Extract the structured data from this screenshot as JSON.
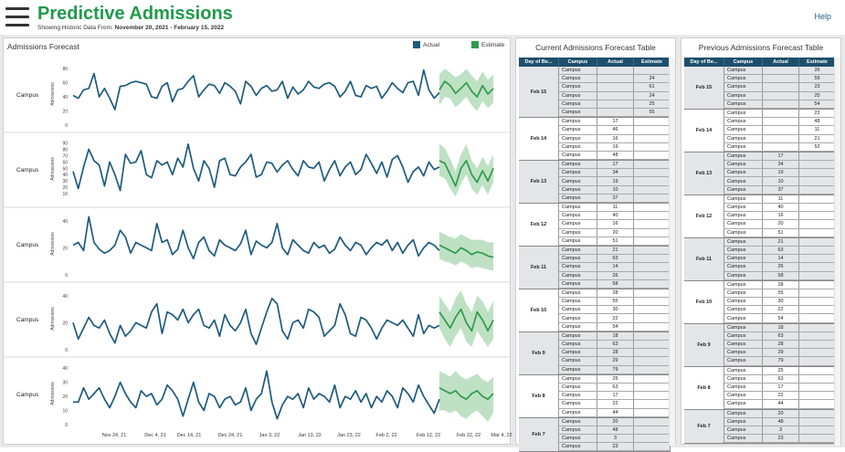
{
  "header": {
    "title": "Predictive Admissions",
    "subtitle_prefix": "Showing Historic Data From:",
    "subtitle_range": "November 20, 2021 - February 15, 2022",
    "help": "Help"
  },
  "forecast": {
    "title": "Admissions Forecast",
    "legend_actual": "Actual",
    "legend_estimate": "Estimate",
    "row_label": "Campus",
    "ylabel": "Admissions",
    "colors": {
      "actual": "#1d5b7d",
      "estimate": "#2f9a4a",
      "band": "#a8d7b0"
    }
  },
  "chart_data": {
    "type": "line",
    "x_dates": [
      "Nov 24, 21",
      "Dec 4, 21",
      "Dec 14, 21",
      "Dec 24, 21",
      "Jan 3, 22",
      "Jan 13, 22",
      "Jan 23, 22",
      "Feb 2, 22",
      "Feb 12, 22",
      "Feb 22, 22",
      "Mar 4, 22"
    ],
    "panels": [
      {
        "label": "Campus",
        "ylabel": "Admissions",
        "yticks": [
          0,
          20,
          40,
          60,
          80
        ],
        "ylim": [
          0,
          88
        ],
        "actual": [
          42,
          38,
          50,
          52,
          73,
          40,
          52,
          38,
          22,
          55,
          56,
          60,
          62,
          60,
          58,
          40,
          38,
          55,
          60,
          33,
          50,
          52,
          62,
          70,
          40,
          50,
          58,
          56,
          45,
          60,
          55,
          48,
          30,
          62,
          55,
          42,
          52,
          56,
          48,
          50,
          62,
          38,
          54,
          44,
          50,
          62,
          54,
          52,
          58,
          60,
          55,
          40,
          48,
          62,
          42,
          40,
          56,
          52,
          55,
          38,
          48,
          60,
          52,
          46,
          60,
          62,
          42,
          78,
          50,
          38,
          46
        ],
        "estimate": [
          50,
          62,
          56,
          45,
          52,
          60,
          48,
          40,
          56,
          44,
          52
        ],
        "est_upper": [
          72,
          80,
          74,
          68,
          72,
          80,
          70,
          62,
          76,
          64,
          72
        ],
        "est_lower": [
          28,
          40,
          38,
          25,
          32,
          40,
          28,
          20,
          34,
          24,
          32
        ]
      },
      {
        "label": "Campus",
        "ylabel": "Admissions",
        "yticks": [
          10,
          20,
          30,
          40,
          50,
          60,
          70,
          80,
          90
        ],
        "ylim": [
          0,
          98
        ],
        "actual": [
          45,
          18,
          52,
          80,
          62,
          55,
          22,
          60,
          40,
          15,
          72,
          58,
          60,
          78,
          40,
          35,
          62,
          55,
          60,
          40,
          66,
          52,
          88,
          50,
          30,
          62,
          50,
          20,
          62,
          66,
          40,
          38,
          52,
          60,
          72,
          36,
          40,
          60,
          58,
          44,
          55,
          62,
          48,
          38,
          62,
          52,
          50,
          60,
          30,
          48,
          62,
          38,
          52,
          60,
          40,
          48,
          72,
          58,
          42,
          60,
          36,
          64,
          70,
          52,
          28,
          45,
          52,
          38,
          60,
          48,
          52
        ],
        "estimate": [
          62,
          58,
          40,
          22,
          50,
          62,
          40,
          28,
          46,
          30,
          50
        ],
        "est_upper": [
          88,
          82,
          65,
          45,
          72,
          88,
          62,
          50,
          68,
          54,
          72
        ],
        "est_lower": [
          38,
          34,
          18,
          5,
          26,
          40,
          18,
          8,
          24,
          8,
          28
        ]
      },
      {
        "label": "Campus",
        "ylabel": "Admissions",
        "yticks": [
          0,
          20,
          40
        ],
        "ylim": [
          0,
          46
        ],
        "actual": [
          22,
          24,
          18,
          43,
          24,
          19,
          16,
          18,
          22,
          33,
          28,
          16,
          24,
          22,
          20,
          18,
          38,
          24,
          26,
          15,
          19,
          33,
          20,
          12,
          24,
          28,
          18,
          14,
          26,
          22,
          20,
          18,
          23,
          33,
          15,
          25,
          22,
          20,
          24,
          38,
          20,
          15,
          26,
          22,
          18,
          16,
          24,
          20,
          22,
          16,
          19,
          28,
          22,
          18,
          24,
          22,
          15,
          20,
          24,
          22,
          26,
          18,
          24,
          16,
          22,
          26,
          14,
          20,
          24,
          22,
          18
        ],
        "estimate": [
          22,
          20,
          18,
          16,
          20,
          18,
          15,
          17,
          16,
          14,
          13
        ],
        "est_upper": [
          32,
          30,
          28,
          27,
          30,
          28,
          26,
          26,
          26,
          24,
          24
        ],
        "est_lower": [
          12,
          10,
          9,
          7,
          10,
          8,
          5,
          6,
          5,
          4,
          3
        ]
      },
      {
        "label": "Campus",
        "ylabel": "Admissions",
        "yticks": [
          0,
          20,
          40
        ],
        "ylim": [
          0,
          46
        ],
        "actual": [
          20,
          8,
          16,
          24,
          18,
          16,
          22,
          12,
          5,
          18,
          10,
          14,
          20,
          18,
          16,
          28,
          34,
          12,
          28,
          26,
          22,
          30,
          20,
          26,
          30,
          18,
          16,
          22,
          10,
          26,
          18,
          14,
          20,
          30,
          12,
          4,
          16,
          28,
          38,
          34,
          14,
          8,
          20,
          22,
          16,
          30,
          28,
          24,
          10,
          14,
          18,
          34,
          26,
          12,
          10,
          24,
          22,
          16,
          8,
          16,
          22,
          20,
          18,
          22,
          16,
          10,
          26,
          12,
          18,
          16,
          18
        ],
        "estimate": [
          28,
          22,
          16,
          24,
          30,
          20,
          14,
          28,
          22,
          14,
          22
        ],
        "est_upper": [
          40,
          34,
          28,
          38,
          44,
          34,
          28,
          40,
          36,
          28,
          36
        ],
        "est_lower": [
          16,
          8,
          2,
          10,
          16,
          6,
          2,
          14,
          8,
          2,
          8
        ]
      },
      {
        "label": "Campus",
        "ylabel": "Admissions",
        "yticks": [
          0,
          10,
          20,
          30,
          40
        ],
        "ylim": [
          0,
          44
        ],
        "actual": [
          16,
          16,
          26,
          18,
          22,
          26,
          18,
          12,
          20,
          30,
          22,
          16,
          12,
          24,
          20,
          22,
          14,
          18,
          28,
          24,
          18,
          6,
          18,
          30,
          16,
          10,
          22,
          20,
          12,
          18,
          20,
          14,
          16,
          26,
          10,
          18,
          22,
          38,
          16,
          4,
          14,
          20,
          18,
          22,
          12,
          26,
          18,
          22,
          20,
          16,
          28,
          12,
          20,
          18,
          24,
          16,
          22,
          12,
          20,
          16,
          24,
          20,
          12,
          26,
          22,
          16,
          28,
          20,
          14,
          8,
          18
        ],
        "estimate": [
          26,
          24,
          22,
          24,
          20,
          18,
          22,
          24,
          20,
          18,
          22
        ],
        "est_upper": [
          38,
          36,
          34,
          38,
          34,
          32,
          34,
          36,
          32,
          30,
          34
        ],
        "est_lower": [
          10,
          10,
          8,
          10,
          6,
          4,
          8,
          10,
          6,
          2,
          8
        ]
      }
    ]
  },
  "current_table": {
    "title": "Current Admissions Forecast Table",
    "headers": [
      "Day of Be...",
      "Campus",
      "Actual",
      "Estimate"
    ],
    "groups": [
      {
        "day": "Feb 15",
        "rows": [
          [
            "Campus",
            "",
            ""
          ],
          [
            "Campus",
            "",
            "24"
          ],
          [
            "Campus",
            "",
            "61"
          ],
          [
            "Campus",
            "",
            "24"
          ],
          [
            "Campus",
            "",
            "25"
          ],
          [
            "Campus",
            "",
            "55"
          ]
        ]
      },
      {
        "day": "Feb 14",
        "rows": [
          [
            "Campus",
            "17",
            ""
          ],
          [
            "Campus",
            "46",
            ""
          ],
          [
            "Campus",
            "16",
            ""
          ],
          [
            "Campus",
            "19",
            ""
          ],
          [
            "Campus",
            "48",
            ""
          ]
        ]
      },
      {
        "day": "Feb 13",
        "rows": [
          [
            "Campus",
            "17",
            ""
          ],
          [
            "Campus",
            "34",
            ""
          ],
          [
            "Campus",
            "19",
            ""
          ],
          [
            "Campus",
            "10",
            ""
          ],
          [
            "Campus",
            "37",
            ""
          ]
        ]
      },
      {
        "day": "Feb 12",
        "rows": [
          [
            "Campus",
            "11",
            ""
          ],
          [
            "Campus",
            "40",
            ""
          ],
          [
            "Campus",
            "16",
            ""
          ],
          [
            "Campus",
            "20",
            ""
          ],
          [
            "Campus",
            "51",
            ""
          ]
        ]
      },
      {
        "day": "Feb 11",
        "rows": [
          [
            "Campus",
            "21",
            ""
          ],
          [
            "Campus",
            "63",
            ""
          ],
          [
            "Campus",
            "14",
            ""
          ],
          [
            "Campus",
            "26",
            ""
          ],
          [
            "Campus",
            "58",
            ""
          ]
        ]
      },
      {
        "day": "Feb 10",
        "rows": [
          [
            "Campus",
            "28",
            ""
          ],
          [
            "Campus",
            "55",
            ""
          ],
          [
            "Campus",
            "30",
            ""
          ],
          [
            "Campus",
            "22",
            ""
          ],
          [
            "Campus",
            "54",
            ""
          ]
        ]
      },
      {
        "day": "Feb 9",
        "rows": [
          [
            "Campus",
            "18",
            ""
          ],
          [
            "Campus",
            "63",
            ""
          ],
          [
            "Campus",
            "28",
            ""
          ],
          [
            "Campus",
            "29",
            ""
          ],
          [
            "Campus",
            "79",
            ""
          ]
        ]
      },
      {
        "day": "Feb 8",
        "rows": [
          [
            "Campus",
            "25",
            ""
          ],
          [
            "Campus",
            "63",
            ""
          ],
          [
            "Campus",
            "17",
            ""
          ],
          [
            "Campus",
            "22",
            ""
          ],
          [
            "Campus",
            "44",
            ""
          ]
        ]
      },
      {
        "day": "Feb 7",
        "rows": [
          [
            "Campus",
            "20",
            ""
          ],
          [
            "Campus",
            "48",
            ""
          ],
          [
            "Campus",
            "3",
            ""
          ],
          [
            "Campus",
            "23",
            ""
          ]
        ]
      }
    ]
  },
  "previous_table": {
    "title": "Previous Admissions Forecast Table",
    "headers": [
      "Day of Be...",
      "Campus",
      "Actual",
      "Estimate"
    ],
    "groups": [
      {
        "day": "Feb 15",
        "rows": [
          [
            "Campus",
            "",
            "26"
          ],
          [
            "Campus",
            "",
            "59"
          ],
          [
            "Campus",
            "",
            "23"
          ],
          [
            "Campus",
            "",
            "25"
          ],
          [
            "Campus",
            "",
            "54"
          ]
        ]
      },
      {
        "day": "Feb 14",
        "rows": [
          [
            "Campus",
            "",
            "23"
          ],
          [
            "Campus",
            "",
            "48"
          ],
          [
            "Campus",
            "",
            "11"
          ],
          [
            "Campus",
            "",
            "21"
          ],
          [
            "Campus",
            "",
            "52"
          ]
        ]
      },
      {
        "day": "Feb 13",
        "rows": [
          [
            "Campus",
            "17",
            ""
          ],
          [
            "Campus",
            "34",
            ""
          ],
          [
            "Campus",
            "19",
            ""
          ],
          [
            "Campus",
            "10",
            ""
          ],
          [
            "Campus",
            "37",
            ""
          ]
        ]
      },
      {
        "day": "Feb 12",
        "rows": [
          [
            "Campus",
            "11",
            ""
          ],
          [
            "Campus",
            "40",
            ""
          ],
          [
            "Campus",
            "16",
            ""
          ],
          [
            "Campus",
            "20",
            ""
          ],
          [
            "Campus",
            "51",
            ""
          ]
        ]
      },
      {
        "day": "Feb 11",
        "rows": [
          [
            "Campus",
            "21",
            ""
          ],
          [
            "Campus",
            "63",
            ""
          ],
          [
            "Campus",
            "14",
            ""
          ],
          [
            "Campus",
            "26",
            ""
          ],
          [
            "Campus",
            "58",
            ""
          ]
        ]
      },
      {
        "day": "Feb 10",
        "rows": [
          [
            "Campus",
            "28",
            ""
          ],
          [
            "Campus",
            "55",
            ""
          ],
          [
            "Campus",
            "30",
            ""
          ],
          [
            "Campus",
            "22",
            ""
          ],
          [
            "Campus",
            "54",
            ""
          ]
        ]
      },
      {
        "day": "Feb 9",
        "rows": [
          [
            "Campus",
            "18",
            ""
          ],
          [
            "Campus",
            "63",
            ""
          ],
          [
            "Campus",
            "28",
            ""
          ],
          [
            "Campus",
            "29",
            ""
          ],
          [
            "Campus",
            "79",
            ""
          ]
        ]
      },
      {
        "day": "Feb 8",
        "rows": [
          [
            "Campus",
            "25",
            ""
          ],
          [
            "Campus",
            "63",
            ""
          ],
          [
            "Campus",
            "17",
            ""
          ],
          [
            "Campus",
            "22",
            ""
          ],
          [
            "Campus",
            "44",
            ""
          ]
        ]
      },
      {
        "day": "Feb 7",
        "rows": [
          [
            "Campus",
            "20",
            ""
          ],
          [
            "Campus",
            "48",
            ""
          ],
          [
            "Campus",
            "3",
            ""
          ],
          [
            "Campus",
            "23",
            ""
          ]
        ]
      }
    ]
  }
}
